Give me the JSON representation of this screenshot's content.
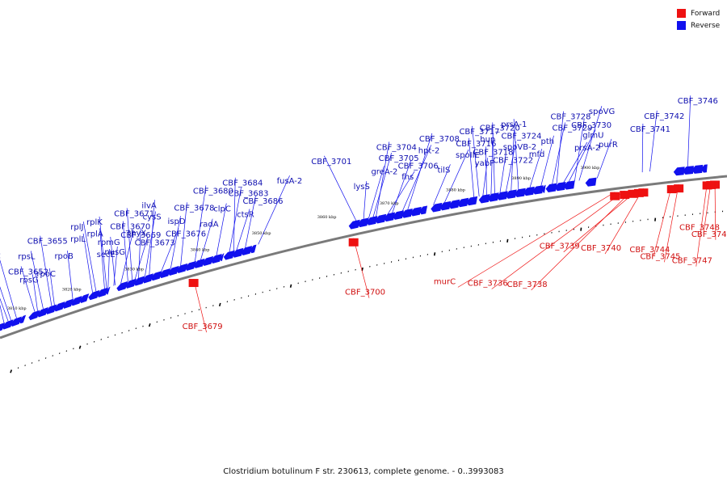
{
  "caption": "Clostridium botulinum F str. 230613, complete genome. - 0..3993083",
  "legend": [
    {
      "label": "Forward",
      "color": "#ee1111"
    },
    {
      "label": "Reverse",
      "color": "#1111ee"
    }
  ],
  "colors": {
    "forward": "#ee1111",
    "reverse": "#1111ee",
    "backbone": "#7a7a7a"
  },
  "scale_labels": [
    {
      "label": "3810 kbp",
      "t": 0.022
    },
    {
      "label": "3820 kbp",
      "t": 0.1
    },
    {
      "label": "3830 kbp",
      "t": 0.188
    },
    {
      "label": "3840 kbp",
      "t": 0.28
    },
    {
      "label": "3850 kbp",
      "t": 0.365
    },
    {
      "label": "3860 kbp",
      "t": 0.455
    },
    {
      "label": "3870 kbp",
      "t": 0.54
    },
    {
      "label": "3880 kbp",
      "t": 0.63
    },
    {
      "label": "3890 kbp",
      "t": 0.718
    },
    {
      "label": "3900 kbp",
      "t": 0.81
    }
  ],
  "forward_genes": [
    {
      "name": "CBF_3679",
      "t": 0.272,
      "lt": 0.24
    },
    {
      "name": "CBF_3700",
      "t": 0.495,
      "lt": 0.468
    },
    {
      "name": "murC",
      "t": 0.85,
      "lt": 0.59
    },
    {
      "name": "CBF_3736",
      "t": 0.863,
      "lt": 0.635
    },
    {
      "name": "CBF_3738",
      "t": 0.874,
      "lt": 0.688
    },
    {
      "name": "CBF_3739",
      "t": 0.882,
      "lt": 0.74
    },
    {
      "name": "CBF_3740",
      "t": 0.888,
      "lt": 0.795
    },
    {
      "name": "CBF_3744",
      "t": 0.926,
      "lt": 0.86
    },
    {
      "name": "CBF_3745",
      "t": 0.935,
      "lt": 0.873
    },
    {
      "name": "CBF_3747",
      "t": 0.973,
      "lt": 0.915
    },
    {
      "name": "CBF_3748",
      "t": 0.978,
      "lt": 0.93
    },
    {
      "name": "CBF_3749",
      "t": 0.983,
      "lt": 0.945
    }
  ],
  "reverse_genes": [
    {
      "name": "rpsJ",
      "t": 0.012,
      "lt": 0.012
    },
    {
      "name": "rplW",
      "t": 0.018,
      "lt": 0.012
    },
    {
      "name": "rplD",
      "t": 0.022,
      "lt": 0.018
    },
    {
      "name": "rplC",
      "t": 0.03,
      "lt": 0.03
    },
    {
      "name": "rpsG",
      "t": 0.06,
      "lt": 0.064
    },
    {
      "name": "CBF_3652",
      "t": 0.056,
      "lt": 0.053
    },
    {
      "name": "rpsL",
      "t": 0.068,
      "lt": 0.072
    },
    {
      "name": "CBF_3655",
      "t": 0.08,
      "lt": 0.09
    },
    {
      "name": "rpoC",
      "t": 0.084,
      "lt": 0.088
    },
    {
      "name": "rpoB",
      "t": 0.11,
      "lt": 0.118
    },
    {
      "name": "rplL",
      "t": 0.138,
      "lt": 0.145
    },
    {
      "name": "rplJ",
      "t": 0.143,
      "lt": 0.15
    },
    {
      "name": "secE",
      "t": 0.16,
      "lt": 0.172
    },
    {
      "name": "rpmG",
      "t": 0.17,
      "lt": 0.178
    },
    {
      "name": "rplA",
      "t": 0.155,
      "lt": 0.168
    },
    {
      "name": "rplK",
      "t": 0.158,
      "lt": 0.172
    },
    {
      "name": "nusG",
      "t": 0.168,
      "lt": 0.183
    },
    {
      "name": "CBF_3669",
      "t": 0.178,
      "lt": 0.21
    },
    {
      "name": "CBF_3670",
      "t": 0.188,
      "lt": 0.2
    },
    {
      "name": "CBF_3671",
      "t": 0.194,
      "lt": 0.21
    },
    {
      "name": "CBF_3673",
      "t": 0.198,
      "lt": 0.225
    },
    {
      "name": "thyX",
      "t": 0.203,
      "lt": 0.22
    },
    {
      "name": "cysS",
      "t": 0.212,
      "lt": 0.245
    },
    {
      "name": "ilvA",
      "t": 0.218,
      "lt": 0.248
    },
    {
      "name": "CBF_3676",
      "t": 0.235,
      "lt": 0.268
    },
    {
      "name": "ispD",
      "t": 0.248,
      "lt": 0.275
    },
    {
      "name": "CBF_3678",
      "t": 0.262,
      "lt": 0.288
    },
    {
      "name": "CBF_3680",
      "t": 0.282,
      "lt": 0.318
    },
    {
      "name": "radA",
      "t": 0.29,
      "lt": 0.315
    },
    {
      "name": "clpC",
      "t": 0.312,
      "lt": 0.338
    },
    {
      "name": "CBF_3683",
      "t": 0.33,
      "lt": 0.362
    },
    {
      "name": "CBF_3684",
      "t": 0.336,
      "lt": 0.358
    },
    {
      "name": "ctsR",
      "t": 0.34,
      "lt": 0.366
    },
    {
      "name": "CBF_3686",
      "t": 0.352,
      "lt": 0.378
    },
    {
      "name": "fusA-2",
      "t": 0.37,
      "lt": 0.428
    },
    {
      "name": "CBF_3701",
      "t": 0.505,
      "lt": 0.478
    },
    {
      "name": "lysS",
      "t": 0.515,
      "lt": 0.525
    },
    {
      "name": "greA-2",
      "t": 0.522,
      "lt": 0.552
    },
    {
      "name": "CBF_3705",
      "t": 0.528,
      "lt": 0.565
    },
    {
      "name": "CBF_3704",
      "t": 0.532,
      "lt": 0.565
    },
    {
      "name": "fhs",
      "t": 0.548,
      "lt": 0.59
    },
    {
      "name": "CBF_3706",
      "t": 0.554,
      "lt": 0.588
    },
    {
      "name": "hpt-2",
      "t": 0.568,
      "lt": 0.618
    },
    {
      "name": "CBF_3708",
      "t": 0.575,
      "lt": 0.622
    },
    {
      "name": "tilS",
      "t": 0.61,
      "lt": 0.638
    },
    {
      "name": "spoIIE",
      "t": 0.625,
      "lt": 0.665
    },
    {
      "name": "CBF_3716",
      "t": 0.665,
      "lt": 0.668
    },
    {
      "name": "CBF_3717",
      "t": 0.672,
      "lt": 0.675
    },
    {
      "name": "yabP",
      "t": 0.677,
      "lt": 0.688
    },
    {
      "name": "CBF_3718",
      "t": 0.682,
      "lt": 0.688
    },
    {
      "name": "hup",
      "t": 0.688,
      "lt": 0.7
    },
    {
      "name": "CBF_3720",
      "t": 0.693,
      "lt": 0.702
    },
    {
      "name": "CBF_3722",
      "t": 0.7,
      "lt": 0.712
    },
    {
      "name": "spoVB-2",
      "t": 0.708,
      "lt": 0.728
    },
    {
      "name": "CBF_3724",
      "t": 0.715,
      "lt": 0.728
    },
    {
      "name": "prsA-1",
      "t": 0.725,
      "lt": 0.73
    },
    {
      "name": "mfd",
      "t": 0.74,
      "lt": 0.76
    },
    {
      "name": "pth",
      "t": 0.755,
      "lt": 0.778
    },
    {
      "name": "CBF_3729",
      "t": 0.77,
      "lt": 0.795
    },
    {
      "name": "CBF_3728",
      "t": 0.776,
      "lt": 0.795
    },
    {
      "name": "prsA-2",
      "t": 0.785,
      "lt": 0.82
    },
    {
      "name": "glmU",
      "t": 0.792,
      "lt": 0.833
    },
    {
      "name": "CBF_3730",
      "t": 0.8,
      "lt": 0.82
    },
    {
      "name": "spoVG",
      "t": 0.806,
      "lt": 0.845
    },
    {
      "name": "purR",
      "t": 0.83,
      "lt": 0.852
    },
    {
      "name": "CBF_3741",
      "t": 0.89,
      "lt": 0.895
    },
    {
      "name": "CBF_3742",
      "t": 0.9,
      "lt": 0.915
    },
    {
      "name": "CBF_3746",
      "t": 0.95,
      "lt": 0.96
    }
  ]
}
